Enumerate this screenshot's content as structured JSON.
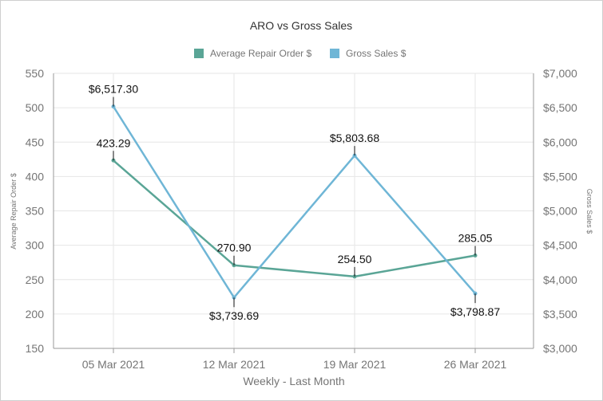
{
  "chart_data": {
    "type": "line",
    "title": "ARO vs Gross Sales",
    "xlabel": "Weekly - Last Month",
    "ylabel_left": "Average Repair Order $",
    "ylabel_right": "Gross Sales $",
    "categories": [
      "05 Mar 2021",
      "12 Mar 2021",
      "19 Mar 2021",
      "26 Mar 2021"
    ],
    "y_left_ticks": [
      "150",
      "200",
      "250",
      "300",
      "350",
      "400",
      "450",
      "500",
      "550"
    ],
    "y_right_ticks": [
      "$3,000",
      "$3,500",
      "$4,000",
      "$4,500",
      "$5,000",
      "$5,500",
      "$6,000",
      "$6,500",
      "$7,000"
    ],
    "ylim_left": [
      150,
      550
    ],
    "ylim_right": [
      3000,
      7000
    ],
    "legend_position": "top-center",
    "grid": true,
    "series": [
      {
        "name": "Average Repair Order $",
        "axis": "left",
        "color": "#5aa596",
        "values": [
          423.29,
          270.9,
          254.5,
          285.05
        ],
        "labels": [
          "423.29",
          "270.90",
          "254.50",
          "285.05"
        ]
      },
      {
        "name": "Gross Sales $",
        "axis": "right",
        "color": "#6fb6d6",
        "values": [
          6517.3,
          3739.69,
          5803.68,
          3798.87
        ],
        "labels": [
          "$6,517.30",
          "$3,739.69",
          "$5,803.68",
          "$3,798.87"
        ]
      }
    ]
  }
}
